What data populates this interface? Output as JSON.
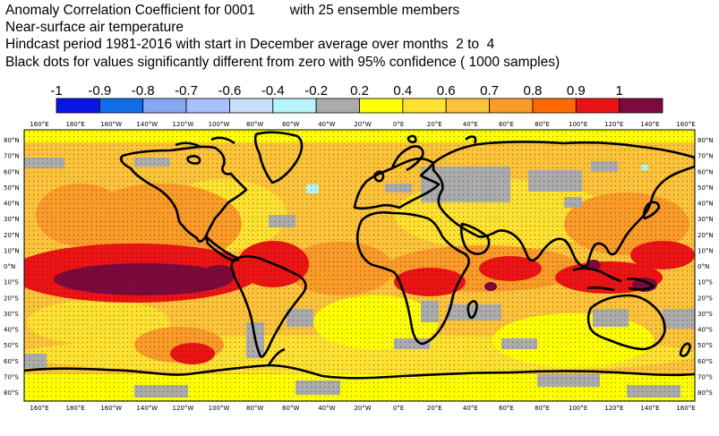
{
  "title": {
    "line1": "Anomaly Correlation Coefficient for 0001         with 25 ensemble members",
    "line2": "Near-surface air temperature",
    "line3": "Hindcast period 1981-2016 with start in December average over months  2 to  4",
    "line4": "Black dots for values significantly different from zero with 95% confidence ( 1000 samples)"
  },
  "legend": {
    "labels": [
      "-1",
      "-0.9",
      "-0.8",
      "-0.7",
      "-0.6",
      "-0.4",
      "-0.2",
      "0.2",
      "0.4",
      "0.6",
      "0.7",
      "0.8",
      "0.9",
      "1"
    ],
    "colors": [
      "#0a14e6",
      "#0f6fea",
      "#87a7f3",
      "#a9c0fb",
      "#c9dcfa",
      "#b6f3fa",
      "#ababab",
      "#ffff00",
      "#fde030",
      "#fbc23a",
      "#fa9a28",
      "#ff6a00",
      "#eb1414",
      "#7d0a3c"
    ]
  },
  "map": {
    "lon_labels": [
      "160°E",
      "180°E",
      "160°W",
      "140°W",
      "120°W",
      "100°W",
      "80°W",
      "60°W",
      "40°W",
      "20°W",
      "0°E",
      "20°E",
      "40°E",
      "60°E",
      "80°E",
      "100°E",
      "120°E",
      "140°E",
      "160°E"
    ],
    "lat_labels": [
      "80°N",
      "70°N",
      "60°N",
      "50°N",
      "40°N",
      "30°N",
      "20°N",
      "10°N",
      "0°N",
      "10°S",
      "20°S",
      "30°S",
      "40°S",
      "50°S",
      "60°S",
      "70°S",
      "80°S"
    ],
    "colors": {
      "yellow": "#ffff00",
      "light_orange": "#fde030",
      "orange": "#fbc23a",
      "dark_orange": "#fa9a28",
      "red_orange": "#ff6a00",
      "red": "#eb1414",
      "maroon": "#7d0a3c",
      "grey": "#ababab",
      "cyan": "#b6f3fa",
      "coast": "#000000"
    }
  }
}
